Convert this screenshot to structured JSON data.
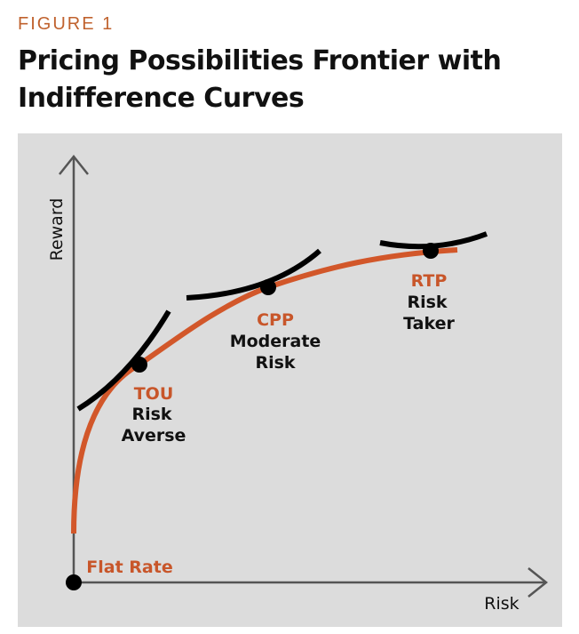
{
  "header": {
    "figure_label": "FIGURE 1",
    "title": "Pricing Possibilities Frontier with Indifference Curves"
  },
  "axes": {
    "y_label": "Reward",
    "x_label": "Risk"
  },
  "origin_label": "Flat Rate",
  "points": [
    {
      "name": "TOU",
      "lines": [
        "Risk",
        "Averse"
      ]
    },
    {
      "name": "CPP",
      "lines": [
        "Moderate",
        "Risk"
      ]
    },
    {
      "name": "RTP",
      "lines": [
        "Risk",
        "Taker"
      ]
    }
  ]
}
